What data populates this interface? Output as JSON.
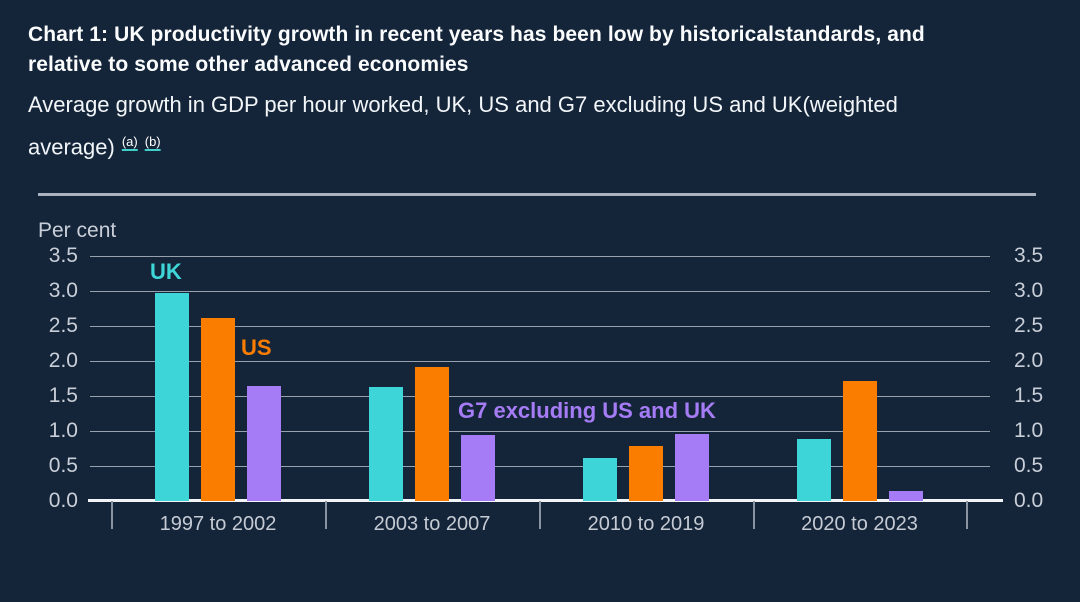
{
  "header": {
    "title": "Chart 1: UK productivity growth in recent years has been low by historicalstandards, and relative to some other advanced economies",
    "subtitle": "Average growth in GDP per hour worked, UK, US and G7 excluding US and UK(weighted average)",
    "footnote_markers": [
      "(a)",
      "(b)"
    ]
  },
  "chart_data": {
    "type": "bar",
    "title": "Chart 1: UK productivity growth in recent years has been low by historicalstandards, and relative to some other advanced economies",
    "subtitle": "Average growth in GDP per hour worked, UK, US and G7 excluding US and UK(weighted average)",
    "unit_label": "Per cent",
    "categories": [
      "1997 to 2002",
      "2003 to 2007",
      "2010 to 2019",
      "2020 to 2023"
    ],
    "series": [
      {
        "name": "UK",
        "color": "#3ed5d8",
        "values": [
          2.97,
          1.63,
          0.62,
          0.89
        ]
      },
      {
        "name": "US",
        "color": "#fb7d00",
        "values": [
          2.61,
          1.92,
          0.79,
          1.72
        ]
      },
      {
        "name": "G7 excluding US and UK",
        "color": "#a57cf5",
        "values": [
          1.64,
          0.94,
          0.96,
          0.15
        ]
      }
    ],
    "ylim": [
      0,
      3.5
    ],
    "ytick_step": 0.5,
    "yticks": [
      "3.5",
      "3.0",
      "2.5",
      "2.0",
      "1.5",
      "1.0",
      "0.5",
      "0.0"
    ],
    "grid": true,
    "axis_sides": [
      "left",
      "right"
    ],
    "legend_position": "inline-annotations",
    "colors": {
      "background": "#142439",
      "gridline": "#98a2ae",
      "axis_line": "#f2f5f7",
      "tick_label": "#c9cfd8",
      "separator": "#a9b3bf"
    }
  }
}
